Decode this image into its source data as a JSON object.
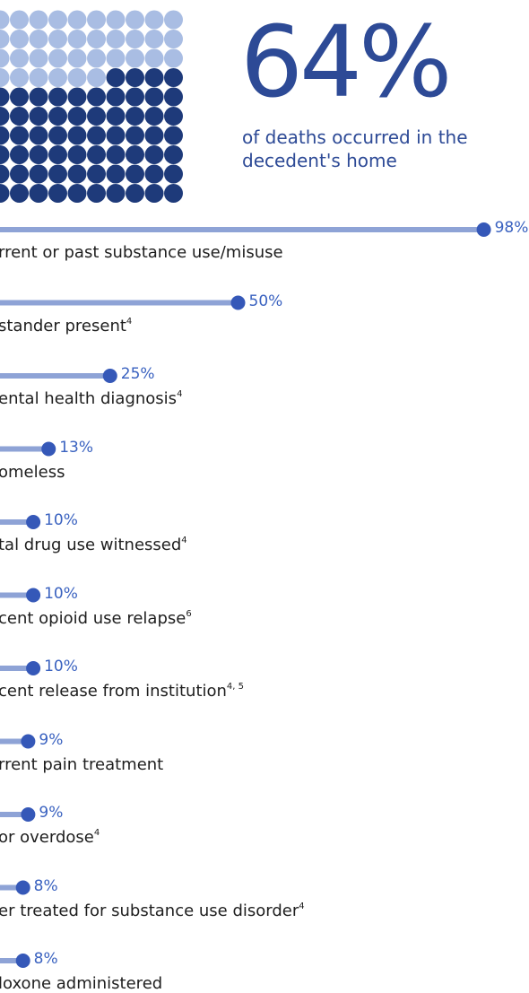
{
  "hero": {
    "percent": "64%",
    "caption": "of deaths occurred in the decedent's home",
    "waffle_filled": 64,
    "waffle_total": 100
  },
  "colors": {
    "dot_dark": "#1e3a7a",
    "dot_light": "#a9bde3",
    "bar": "#8ea3d6",
    "marker": "#3558b8",
    "value_text": "#3a62c0",
    "hero_text": "#2d4a96"
  },
  "chart_data": {
    "type": "bar",
    "orientation": "horizontal",
    "categories": [
      "rrent or past substance use/misuse",
      "stander present",
      "ental health diagnosis",
      "omeless",
      "tal drug use witnessed",
      "cent opioid use relapse",
      "cent release from institution",
      "rrent pain treatment",
      "or overdose",
      "er treated for substance use disorder",
      "loxone administered"
    ],
    "footnotes": [
      "",
      "4",
      "4",
      "",
      "4",
      "6",
      "4, 5",
      "",
      "4",
      "4",
      ""
    ],
    "values": [
      98,
      50,
      25,
      13,
      10,
      10,
      10,
      9,
      9,
      8,
      8
    ],
    "value_labels": [
      "98%",
      "50%",
      "25%",
      "13%",
      "10%",
      "10%",
      "10%",
      "9%",
      "9%",
      "8%",
      "8%"
    ],
    "xlim": [
      0,
      100
    ]
  }
}
